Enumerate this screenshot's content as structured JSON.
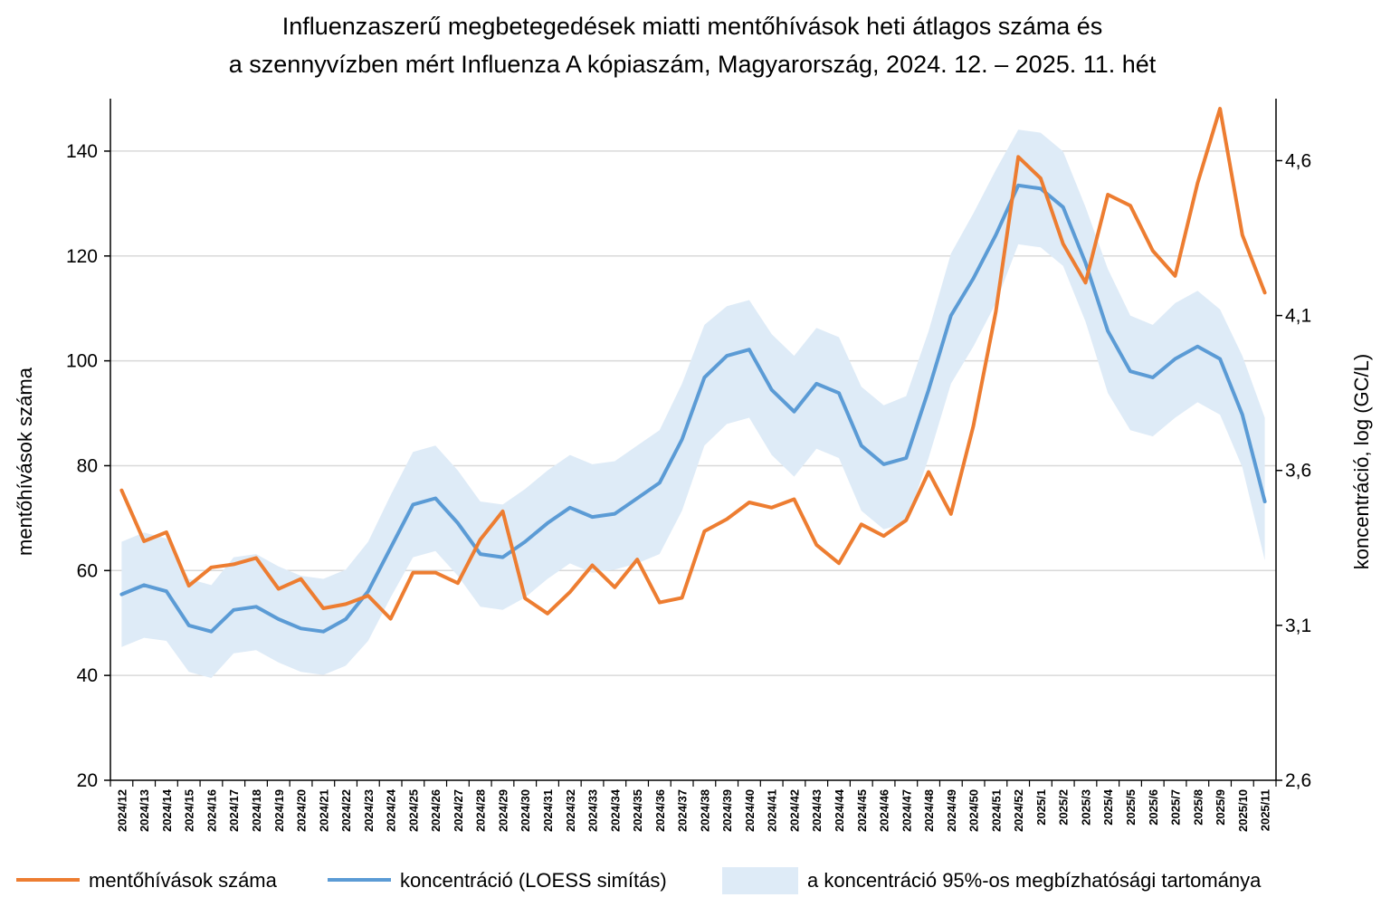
{
  "chart_data": {
    "type": "line",
    "title_line1": "Influenzaszerű megbetegedések miatti mentőhívások heti átlagos száma és",
    "title_line2": "a szennyvízben mért Influenza A kópiaszám, Magyarország, 2024. 12. – 2025. 11. hét",
    "ylabel_left": "mentőhívások száma",
    "ylabel_right": "koncentráció, log (GC/L)",
    "y_left": {
      "min": 20,
      "max": 150,
      "ticks": [
        20,
        40,
        60,
        80,
        100,
        120,
        140
      ]
    },
    "y_right": {
      "min": 2.6,
      "max": 4.8,
      "ticks": [
        2.6,
        3.1,
        3.6,
        4.1,
        4.6
      ],
      "tick_labels": [
        "2,6",
        "3,1",
        "3,6",
        "4,1",
        "4,6"
      ]
    },
    "grid": "horizontal",
    "legend_position": "bottom",
    "categories": [
      "2024/12",
      "2024/13",
      "2024/14",
      "2024/15",
      "2024/16",
      "2024/17",
      "2024/18",
      "2024/19",
      "2024/20",
      "2024/21",
      "2024/22",
      "2024/23",
      "2024/24",
      "2024/25",
      "2024/26",
      "2024/27",
      "2024/28",
      "2024/29",
      "2024/30",
      "2024/31",
      "2024/32",
      "2024/33",
      "2024/34",
      "2024/35",
      "2024/36",
      "2024/37",
      "2024/38",
      "2024/39",
      "2024/40",
      "2024/41",
      "2024/42",
      "2024/43",
      "2024/44",
      "2024/45",
      "2024/46",
      "2024/47",
      "2024/48",
      "2024/49",
      "2024/50",
      "2024/51",
      "2024/52",
      "2025/1",
      "2025/2",
      "2025/3",
      "2025/4",
      "2025/5",
      "2025/6",
      "2025/7",
      "2025/8",
      "2025/9",
      "2025/10",
      "2025/11"
    ],
    "series": [
      {
        "name": "mentőhívások száma",
        "axis": "left",
        "color": "#ed7d31",
        "values": [
          75.3,
          65.6,
          67.3,
          57.1,
          60.6,
          61.2,
          62.4,
          56.5,
          58.4,
          52.8,
          53.6,
          55.2,
          50.8,
          59.6,
          59.6,
          57.6,
          65.9,
          71.3,
          54.7,
          51.8,
          55.9,
          61.0,
          56.8,
          62.1,
          53.9,
          54.8,
          67.5,
          69.8,
          73.0,
          72.0,
          73.6,
          64.9,
          61.4,
          68.8,
          66.6,
          69.6,
          78.8,
          70.8,
          87.6,
          109.4,
          138.9,
          134.8,
          122.3,
          114.9,
          131.7,
          129.6,
          121.0,
          116.2,
          133.9,
          148.1,
          124.0,
          113.0
        ]
      },
      {
        "name": "koncentráció (LOESS simítás)",
        "axis": "right",
        "color": "#5b9bd5",
        "values": [
          3.2,
          3.23,
          3.21,
          3.1,
          3.08,
          3.15,
          3.16,
          3.12,
          3.09,
          3.08,
          3.12,
          3.21,
          3.35,
          3.49,
          3.51,
          3.43,
          3.33,
          3.32,
          3.37,
          3.43,
          3.48,
          3.45,
          3.46,
          3.51,
          3.56,
          3.7,
          3.9,
          3.97,
          3.99,
          3.86,
          3.79,
          3.88,
          3.85,
          3.68,
          3.62,
          3.64,
          3.86,
          4.1,
          4.22,
          4.36,
          4.52,
          4.51,
          4.45,
          4.27,
          4.05,
          3.92,
          3.9,
          3.96,
          4.0,
          3.96,
          3.78,
          3.5
        ]
      }
    ],
    "band": {
      "name": "a koncentráció 95%-os megbízhatósági tartománya",
      "axis": "right",
      "color": "#deebf7",
      "lower": [
        3.03,
        3.06,
        3.05,
        2.95,
        2.93,
        3.01,
        3.02,
        2.98,
        2.95,
        2.94,
        2.97,
        3.05,
        3.19,
        3.32,
        3.34,
        3.26,
        3.16,
        3.15,
        3.19,
        3.25,
        3.3,
        3.27,
        3.28,
        3.3,
        3.33,
        3.47,
        3.68,
        3.75,
        3.77,
        3.65,
        3.58,
        3.67,
        3.64,
        3.47,
        3.41,
        3.43,
        3.64,
        3.88,
        4.0,
        4.14,
        4.33,
        4.32,
        4.26,
        4.08,
        3.85,
        3.73,
        3.71,
        3.77,
        3.82,
        3.78,
        3.61,
        3.31
      ],
      "upper": [
        3.37,
        3.4,
        3.38,
        3.25,
        3.23,
        3.32,
        3.33,
        3.29,
        3.26,
        3.25,
        3.28,
        3.37,
        3.52,
        3.66,
        3.68,
        3.6,
        3.5,
        3.49,
        3.54,
        3.6,
        3.65,
        3.62,
        3.63,
        3.68,
        3.73,
        3.88,
        4.07,
        4.13,
        4.15,
        4.04,
        3.97,
        4.06,
        4.03,
        3.87,
        3.81,
        3.84,
        4.05,
        4.3,
        4.43,
        4.57,
        4.7,
        4.69,
        4.63,
        4.45,
        4.25,
        4.1,
        4.07,
        4.14,
        4.18,
        4.12,
        3.97,
        3.77
      ]
    }
  }
}
